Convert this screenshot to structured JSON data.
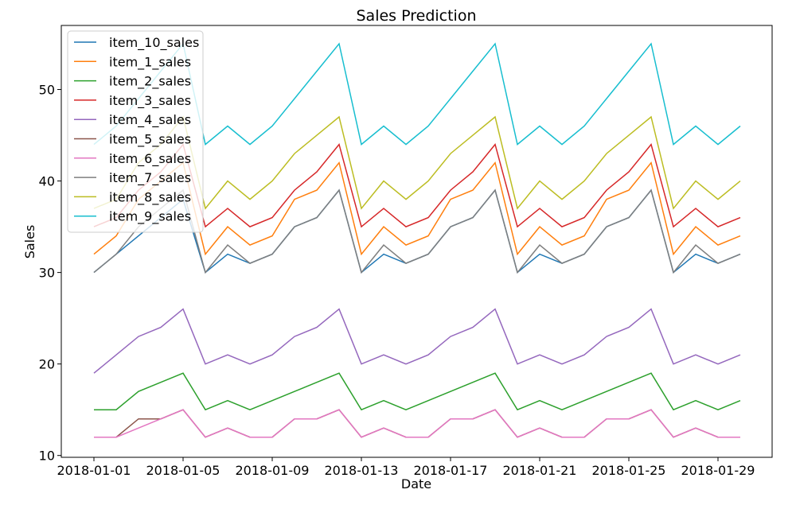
{
  "chart_data": {
    "type": "line",
    "title": "Sales Prediction",
    "xlabel": "Date",
    "ylabel": "Sales",
    "x": [
      "2018-01-01",
      "2018-01-02",
      "2018-01-03",
      "2018-01-04",
      "2018-01-05",
      "2018-01-06",
      "2018-01-07",
      "2018-01-08",
      "2018-01-09",
      "2018-01-10",
      "2018-01-11",
      "2018-01-12",
      "2018-01-13",
      "2018-01-14",
      "2018-01-15",
      "2018-01-16",
      "2018-01-17",
      "2018-01-18",
      "2018-01-19",
      "2018-01-20",
      "2018-01-21",
      "2018-01-22",
      "2018-01-23",
      "2018-01-24",
      "2018-01-25",
      "2018-01-26",
      "2018-01-27",
      "2018-01-28",
      "2018-01-29",
      "2018-01-30"
    ],
    "x_ticks": [
      "2018-01-01",
      "2018-01-05",
      "2018-01-09",
      "2018-01-13",
      "2018-01-17",
      "2018-01-21",
      "2018-01-25",
      "2018-01-29"
    ],
    "y_ticks": [
      10,
      20,
      30,
      40,
      50
    ],
    "ylim": [
      9.8,
      57
    ],
    "grid": false,
    "legend_position": "upper-left",
    "series": [
      {
        "name": "item_10_sales",
        "color": "#1f77b4",
        "values": [
          30,
          32,
          34,
          36,
          38,
          30,
          32,
          31,
          32,
          35,
          36,
          39,
          30,
          32,
          31,
          32,
          35,
          36,
          39,
          30,
          32,
          31,
          32,
          35,
          36,
          39,
          30,
          32,
          31,
          32
        ]
      },
      {
        "name": "item_1_sales",
        "color": "#ff7f0e",
        "values": [
          32,
          34,
          38,
          40,
          42,
          32,
          35,
          33,
          34,
          38,
          39,
          42,
          32,
          35,
          33,
          34,
          38,
          39,
          42,
          32,
          35,
          33,
          34,
          38,
          39,
          42,
          32,
          35,
          33,
          34
        ]
      },
      {
        "name": "item_2_sales",
        "color": "#2ca02c",
        "values": [
          15,
          15,
          17,
          18,
          19,
          15,
          16,
          15,
          16,
          17,
          18,
          19,
          15,
          16,
          15,
          16,
          17,
          18,
          19,
          15,
          16,
          15,
          16,
          17,
          18,
          19,
          15,
          16,
          15,
          16
        ]
      },
      {
        "name": "item_3_sales",
        "color": "#d62728",
        "values": [
          35,
          36,
          39,
          41,
          44,
          35,
          37,
          35,
          36,
          39,
          41,
          44,
          35,
          37,
          35,
          36,
          39,
          41,
          44,
          35,
          37,
          35,
          36,
          39,
          41,
          44,
          35,
          37,
          35,
          36
        ]
      },
      {
        "name": "item_4_sales",
        "color": "#9467bd",
        "values": [
          19,
          21,
          23,
          24,
          26,
          20,
          21,
          20,
          21,
          23,
          24,
          26,
          20,
          21,
          20,
          21,
          23,
          24,
          26,
          20,
          21,
          20,
          21,
          23,
          24,
          26,
          20,
          21,
          20,
          21
        ]
      },
      {
        "name": "item_5_sales",
        "color": "#8c564b",
        "values": [
          12,
          12,
          14,
          14,
          15,
          12,
          13,
          12,
          12,
          14,
          14,
          15,
          12,
          13,
          12,
          12,
          14,
          14,
          15,
          12,
          13,
          12,
          12,
          14,
          14,
          15,
          12,
          13,
          12,
          12
        ]
      },
      {
        "name": "item_6_sales",
        "color": "#e377c2",
        "values": [
          12,
          12,
          13,
          14,
          15,
          12,
          13,
          12,
          12,
          14,
          14,
          15,
          12,
          13,
          12,
          12,
          14,
          14,
          15,
          12,
          13,
          12,
          12,
          14,
          14,
          15,
          12,
          13,
          12,
          12
        ]
      },
      {
        "name": "item_7_sales",
        "color": "#7f7f7f",
        "values": [
          30,
          32,
          35,
          37,
          39,
          30,
          33,
          31,
          32,
          35,
          36,
          39,
          30,
          33,
          31,
          32,
          35,
          36,
          39,
          30,
          33,
          31,
          32,
          35,
          36,
          39,
          30,
          33,
          31,
          32
        ]
      },
      {
        "name": "item_8_sales",
        "color": "#bcbd22",
        "values": [
          37,
          38,
          42,
          44,
          47,
          37,
          40,
          38,
          40,
          43,
          45,
          47,
          37,
          40,
          38,
          40,
          43,
          45,
          47,
          37,
          40,
          38,
          40,
          43,
          45,
          47,
          37,
          40,
          38,
          40
        ]
      },
      {
        "name": "item_9_sales",
        "color": "#17becf",
        "values": [
          44,
          46,
          49,
          52,
          55,
          44,
          46,
          44,
          46,
          49,
          52,
          55,
          44,
          46,
          44,
          46,
          49,
          52,
          55,
          44,
          46,
          44,
          46,
          49,
          52,
          55,
          44,
          46,
          44,
          46
        ]
      }
    ]
  }
}
